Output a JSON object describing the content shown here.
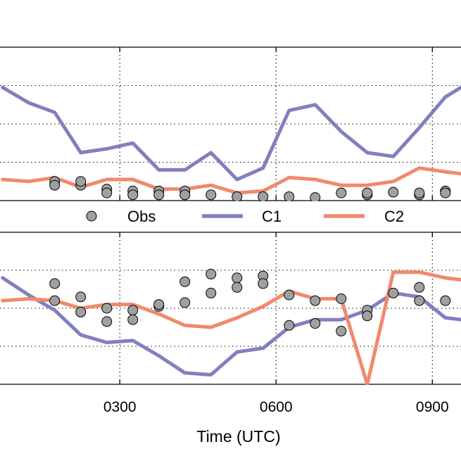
{
  "chart_data": {
    "type": "line",
    "xlabel": "Time (UTC)",
    "x_ticks": [
      {
        "value": 3,
        "label": "0300"
      },
      {
        "value": 6,
        "label": "0600"
      },
      {
        "value": 9,
        "label": "0900"
      }
    ],
    "xlim": [
      0.7,
      9.55
    ],
    "legend": {
      "placement": "between panels",
      "entries": [
        {
          "name": "Obs",
          "marker": "circle"
        },
        {
          "name": "C1",
          "marker": "line"
        },
        {
          "name": "C2",
          "marker": "line"
        }
      ]
    },
    "colors": {
      "Obs": "#a0a0a0",
      "C1": "#8080c0",
      "C2": "#ef8a6c",
      "grid": "#000000"
    },
    "grid": true,
    "panels": [
      {
        "id": "top",
        "ylim": [
          0,
          4
        ],
        "y_grid": [
          1,
          2,
          3
        ],
        "series": [
          {
            "name": "C1",
            "x": [
              0.75,
              1.25,
              1.75,
              2.25,
              2.75,
              3.25,
              3.75,
              4.25,
              4.75,
              5.25,
              5.75,
              6.25,
              6.75,
              7.25,
              7.75,
              8.25,
              8.75,
              9.25,
              9.55
            ],
            "y": [
              2.95,
              2.55,
              2.3,
              1.25,
              1.35,
              1.5,
              0.8,
              0.8,
              1.25,
              0.55,
              0.85,
              2.35,
              2.5,
              1.8,
              1.25,
              1.15,
              1.9,
              2.7,
              2.95
            ]
          },
          {
            "name": "C2",
            "x": [
              0.75,
              1.25,
              1.75,
              2.25,
              2.75,
              3.25,
              3.75,
              4.25,
              4.75,
              5.25,
              5.75,
              6.25,
              6.75,
              7.25,
              7.75,
              8.25,
              8.75,
              9.25,
              9.55
            ],
            "y": [
              0.55,
              0.5,
              0.6,
              0.35,
              0.55,
              0.55,
              0.3,
              0.3,
              0.4,
              0.2,
              0.25,
              0.6,
              0.55,
              0.4,
              0.4,
              0.5,
              0.85,
              0.75,
              0.7
            ]
          },
          {
            "name": "Obs",
            "x": [
              1.75,
              1.75,
              2.25,
              2.25,
              2.75,
              2.75,
              3.25,
              3.25,
              3.75,
              3.75,
              4.25,
              4.25,
              4.75,
              5.25,
              5.75,
              6.25,
              6.75,
              7.25,
              7.75,
              7.75,
              8.25,
              8.75,
              8.75,
              9.25,
              9.25
            ],
            "y": [
              0.5,
              0.4,
              0.4,
              0.5,
              0.3,
              0.2,
              0.25,
              0.15,
              0.25,
              0.15,
              0.25,
              0.15,
              0.15,
              0.1,
              0.1,
              0.1,
              0.08,
              0.2,
              0.15,
              0.2,
              0.22,
              0.15,
              0.2,
              0.25,
              0.2
            ]
          }
        ]
      },
      {
        "id": "bottom",
        "ylim": [
          0,
          4
        ],
        "y_grid": [
          1,
          2,
          3
        ],
        "series": [
          {
            "name": "C1",
            "x": [
              0.75,
              1.25,
              1.75,
              2.25,
              2.75,
              3.25,
              3.75,
              4.25,
              4.75,
              5.25,
              5.75,
              6.25,
              6.75,
              7.25,
              7.75,
              8.25,
              8.75,
              9.25,
              9.55
            ],
            "y": [
              2.8,
              2.35,
              1.95,
              1.3,
              1.1,
              1.15,
              0.75,
              0.3,
              0.25,
              0.85,
              0.95,
              1.5,
              1.7,
              1.7,
              1.95,
              2.4,
              2.3,
              1.75,
              1.7
            ]
          },
          {
            "name": "C2",
            "x": [
              0.75,
              1.25,
              1.75,
              2.25,
              2.75,
              3.25,
              3.75,
              4.25,
              4.75,
              5.25,
              5.75,
              6.25,
              6.75,
              7.25,
              7.75,
              8.25,
              8.75,
              9.25,
              9.55
            ],
            "y": [
              2.2,
              2.25,
              2.2,
              2.0,
              2.1,
              2.1,
              1.85,
              1.55,
              1.5,
              1.75,
              2.05,
              2.45,
              2.25,
              2.25,
              0.0,
              2.95,
              2.95,
              2.8,
              2.75
            ]
          },
          {
            "name": "Obs",
            "x": [
              1.75,
              1.75,
              2.25,
              2.25,
              2.75,
              2.75,
              3.25,
              3.25,
              3.75,
              3.75,
              4.25,
              4.25,
              4.75,
              4.75,
              5.25,
              5.25,
              5.75,
              5.75,
              6.25,
              6.25,
              6.75,
              6.75,
              7.25,
              7.25,
              7.75,
              7.75,
              8.25,
              8.75,
              8.75,
              9.25
            ],
            "y": [
              2.65,
              2.2,
              2.3,
              1.9,
              2.0,
              1.65,
              1.95,
              1.7,
              2.05,
              2.1,
              2.7,
              2.15,
              2.9,
              2.4,
              2.8,
              2.55,
              2.85,
              2.65,
              2.35,
              1.55,
              2.2,
              1.6,
              1.4,
              2.25,
              1.95,
              1.8,
              2.4,
              2.55,
              2.2,
              2.2
            ]
          }
        ]
      }
    ]
  }
}
